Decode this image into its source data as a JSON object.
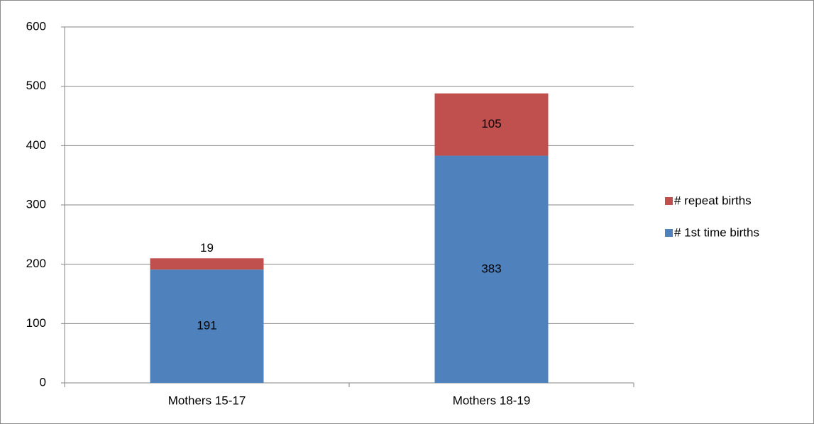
{
  "chart_data": {
    "type": "stacked_bar",
    "categories": [
      "Mothers 15-17",
      "Mothers 18-19"
    ],
    "series": [
      {
        "name": "# 1st time births",
        "color": "#4f81bd",
        "values": [
          191,
          383
        ]
      },
      {
        "name": "# repeat births",
        "color": "#c0504d",
        "values": [
          19,
          105
        ]
      }
    ],
    "ylim": [
      0,
      600
    ],
    "yticks": [
      0,
      100,
      200,
      300,
      400,
      500,
      600
    ],
    "grid": true,
    "legend": "right",
    "data_labels": true
  }
}
